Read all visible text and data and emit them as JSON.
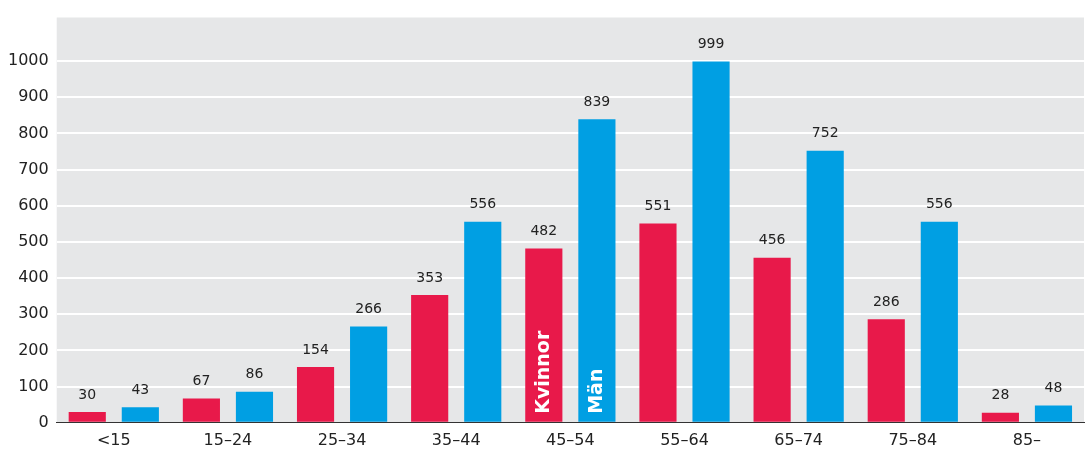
{
  "chart_data": {
    "type": "bar",
    "categories": [
      "<15",
      "15–24",
      "25–34",
      "35–44",
      "45–54",
      "55–64",
      "65–74",
      "75–84",
      "85–"
    ],
    "series": [
      {
        "name": "Kvinnor",
        "color": "#e8194a",
        "values": [
          30,
          67,
          154,
          353,
          482,
          551,
          456,
          286,
          28
        ]
      },
      {
        "name": "Män",
        "color": "#009fe3",
        "values": [
          43,
          86,
          266,
          556,
          839,
          999,
          752,
          556,
          48
        ]
      }
    ],
    "ylim": [
      0,
      1120
    ],
    "yticks": [
      0,
      100,
      200,
      300,
      400,
      500,
      600,
      700,
      800,
      900,
      1000
    ],
    "grid": "y",
    "data_labels": true
  }
}
